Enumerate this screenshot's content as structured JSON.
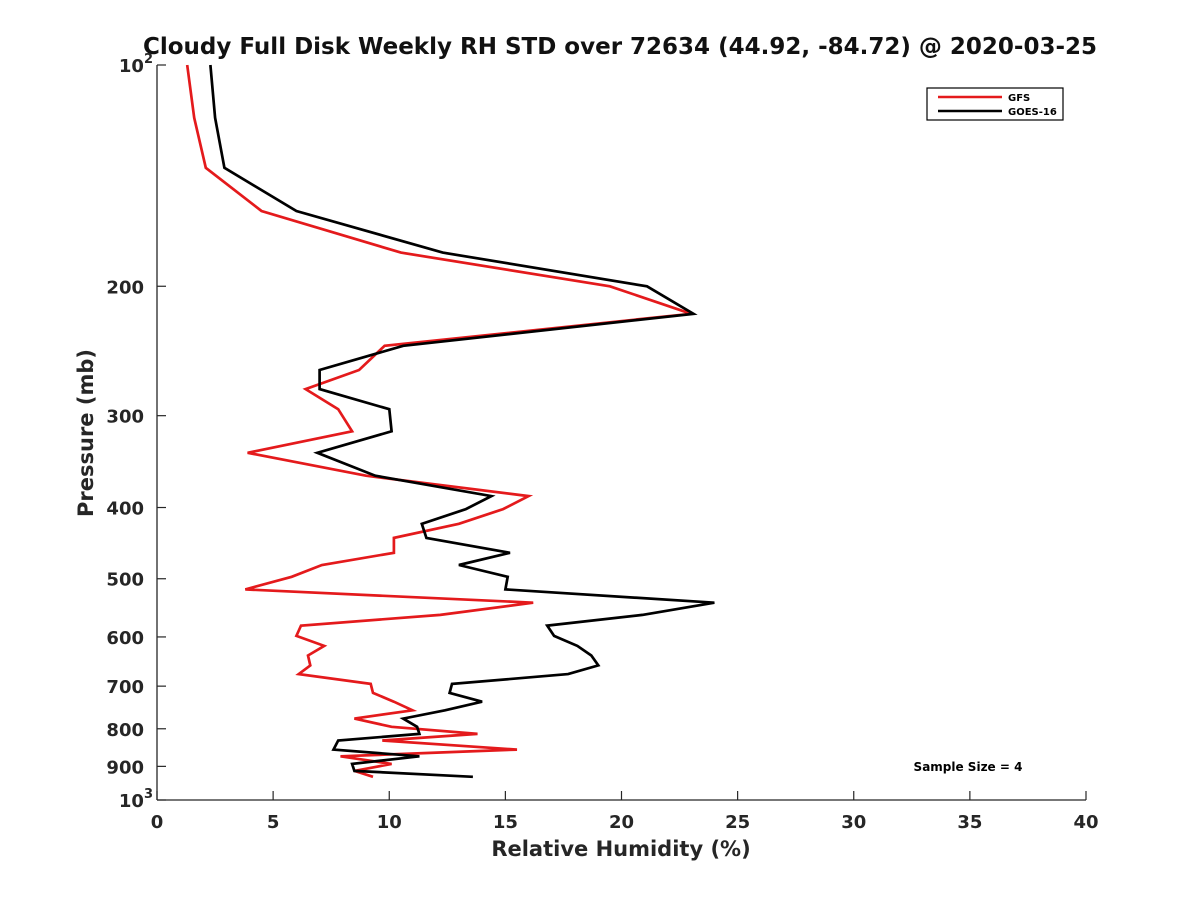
{
  "chart_data": {
    "type": "line",
    "title": "Cloudy Full Disk Weekly RH STD over 72634 (44.92, -84.72) @ 2020-03-25",
    "xlabel": "Relative Humidity (%)",
    "ylabel": "Pressure (mb)",
    "xlim": [
      0,
      40
    ],
    "ylim": [
      100,
      1000
    ],
    "y_scale": "log",
    "y_reversed": true,
    "grid": false,
    "legend": "top-right",
    "x_ticks": [
      0,
      5,
      10,
      15,
      20,
      25,
      30,
      35,
      40
    ],
    "y_ticks": [
      {
        "value": 100,
        "label": "10",
        "sup": "2"
      },
      {
        "value": 200,
        "label": "200"
      },
      {
        "value": 300,
        "label": "300"
      },
      {
        "value": 400,
        "label": "400"
      },
      {
        "value": 500,
        "label": "500"
      },
      {
        "value": 600,
        "label": "600"
      },
      {
        "value": 700,
        "label": "700"
      },
      {
        "value": 800,
        "label": "800"
      },
      {
        "value": 900,
        "label": "900"
      },
      {
        "value": 1000,
        "label": "10",
        "sup": "3"
      }
    ],
    "annotation": "Sample Size = 4",
    "series": [
      {
        "name": "GFS",
        "color": "#e41a1c",
        "points": [
          [
            1.3,
            100
          ],
          [
            1.6,
            118
          ],
          [
            2.1,
            138
          ],
          [
            4.5,
            158
          ],
          [
            10.5,
            180
          ],
          [
            19.5,
            200
          ],
          [
            23.0,
            218
          ],
          [
            9.8,
            241
          ],
          [
            8.7,
            260
          ],
          [
            6.4,
            276
          ],
          [
            7.8,
            294
          ],
          [
            8.4,
            315
          ],
          [
            3.9,
            337
          ],
          [
            9.0,
            362
          ],
          [
            16.0,
            386
          ],
          [
            14.9,
            402
          ],
          [
            13.0,
            421
          ],
          [
            10.2,
            440
          ],
          [
            10.2,
            461
          ],
          [
            7.1,
            479
          ],
          [
            5.8,
            497
          ],
          [
            3.8,
            517
          ],
          [
            16.2,
            539
          ],
          [
            12.2,
            560
          ],
          [
            6.2,
            579
          ],
          [
            6.0,
            598
          ],
          [
            7.2,
            617
          ],
          [
            6.5,
            636
          ],
          [
            6.6,
            656
          ],
          [
            6.1,
            674
          ],
          [
            9.2,
            695
          ],
          [
            9.3,
            715
          ],
          [
            10.2,
            735
          ],
          [
            11.0,
            755
          ],
          [
            8.5,
            775
          ],
          [
            10.1,
            795
          ],
          [
            13.8,
            813
          ],
          [
            9.7,
            830
          ],
          [
            15.5,
            854
          ],
          [
            7.9,
            872
          ],
          [
            10.1,
            893
          ],
          [
            8.5,
            913
          ],
          [
            9.3,
            930
          ]
        ]
      },
      {
        "name": "GOES-16",
        "color": "#000000",
        "points": [
          [
            2.3,
            100
          ],
          [
            2.5,
            118
          ],
          [
            2.9,
            138
          ],
          [
            6.0,
            158
          ],
          [
            12.3,
            180
          ],
          [
            21.1,
            200
          ],
          [
            23.1,
            218
          ],
          [
            10.6,
            241
          ],
          [
            7.0,
            260
          ],
          [
            7.0,
            276
          ],
          [
            10.0,
            294
          ],
          [
            10.1,
            315
          ],
          [
            6.9,
            337
          ],
          [
            9.4,
            362
          ],
          [
            14.4,
            386
          ],
          [
            13.3,
            402
          ],
          [
            11.4,
            421
          ],
          [
            11.6,
            440
          ],
          [
            15.2,
            461
          ],
          [
            13.0,
            479
          ],
          [
            15.1,
            497
          ],
          [
            15.0,
            517
          ],
          [
            24.0,
            539
          ],
          [
            20.9,
            560
          ],
          [
            16.8,
            579
          ],
          [
            17.1,
            598
          ],
          [
            18.1,
            617
          ],
          [
            18.7,
            636
          ],
          [
            19.0,
            656
          ],
          [
            17.7,
            674
          ],
          [
            12.7,
            695
          ],
          [
            12.6,
            715
          ],
          [
            14.0,
            735
          ],
          [
            12.4,
            755
          ],
          [
            10.6,
            775
          ],
          [
            11.2,
            795
          ],
          [
            11.3,
            813
          ],
          [
            7.8,
            830
          ],
          [
            7.6,
            854
          ],
          [
            11.3,
            872
          ],
          [
            8.4,
            893
          ],
          [
            8.5,
            913
          ],
          [
            13.6,
            930
          ]
        ]
      }
    ]
  }
}
